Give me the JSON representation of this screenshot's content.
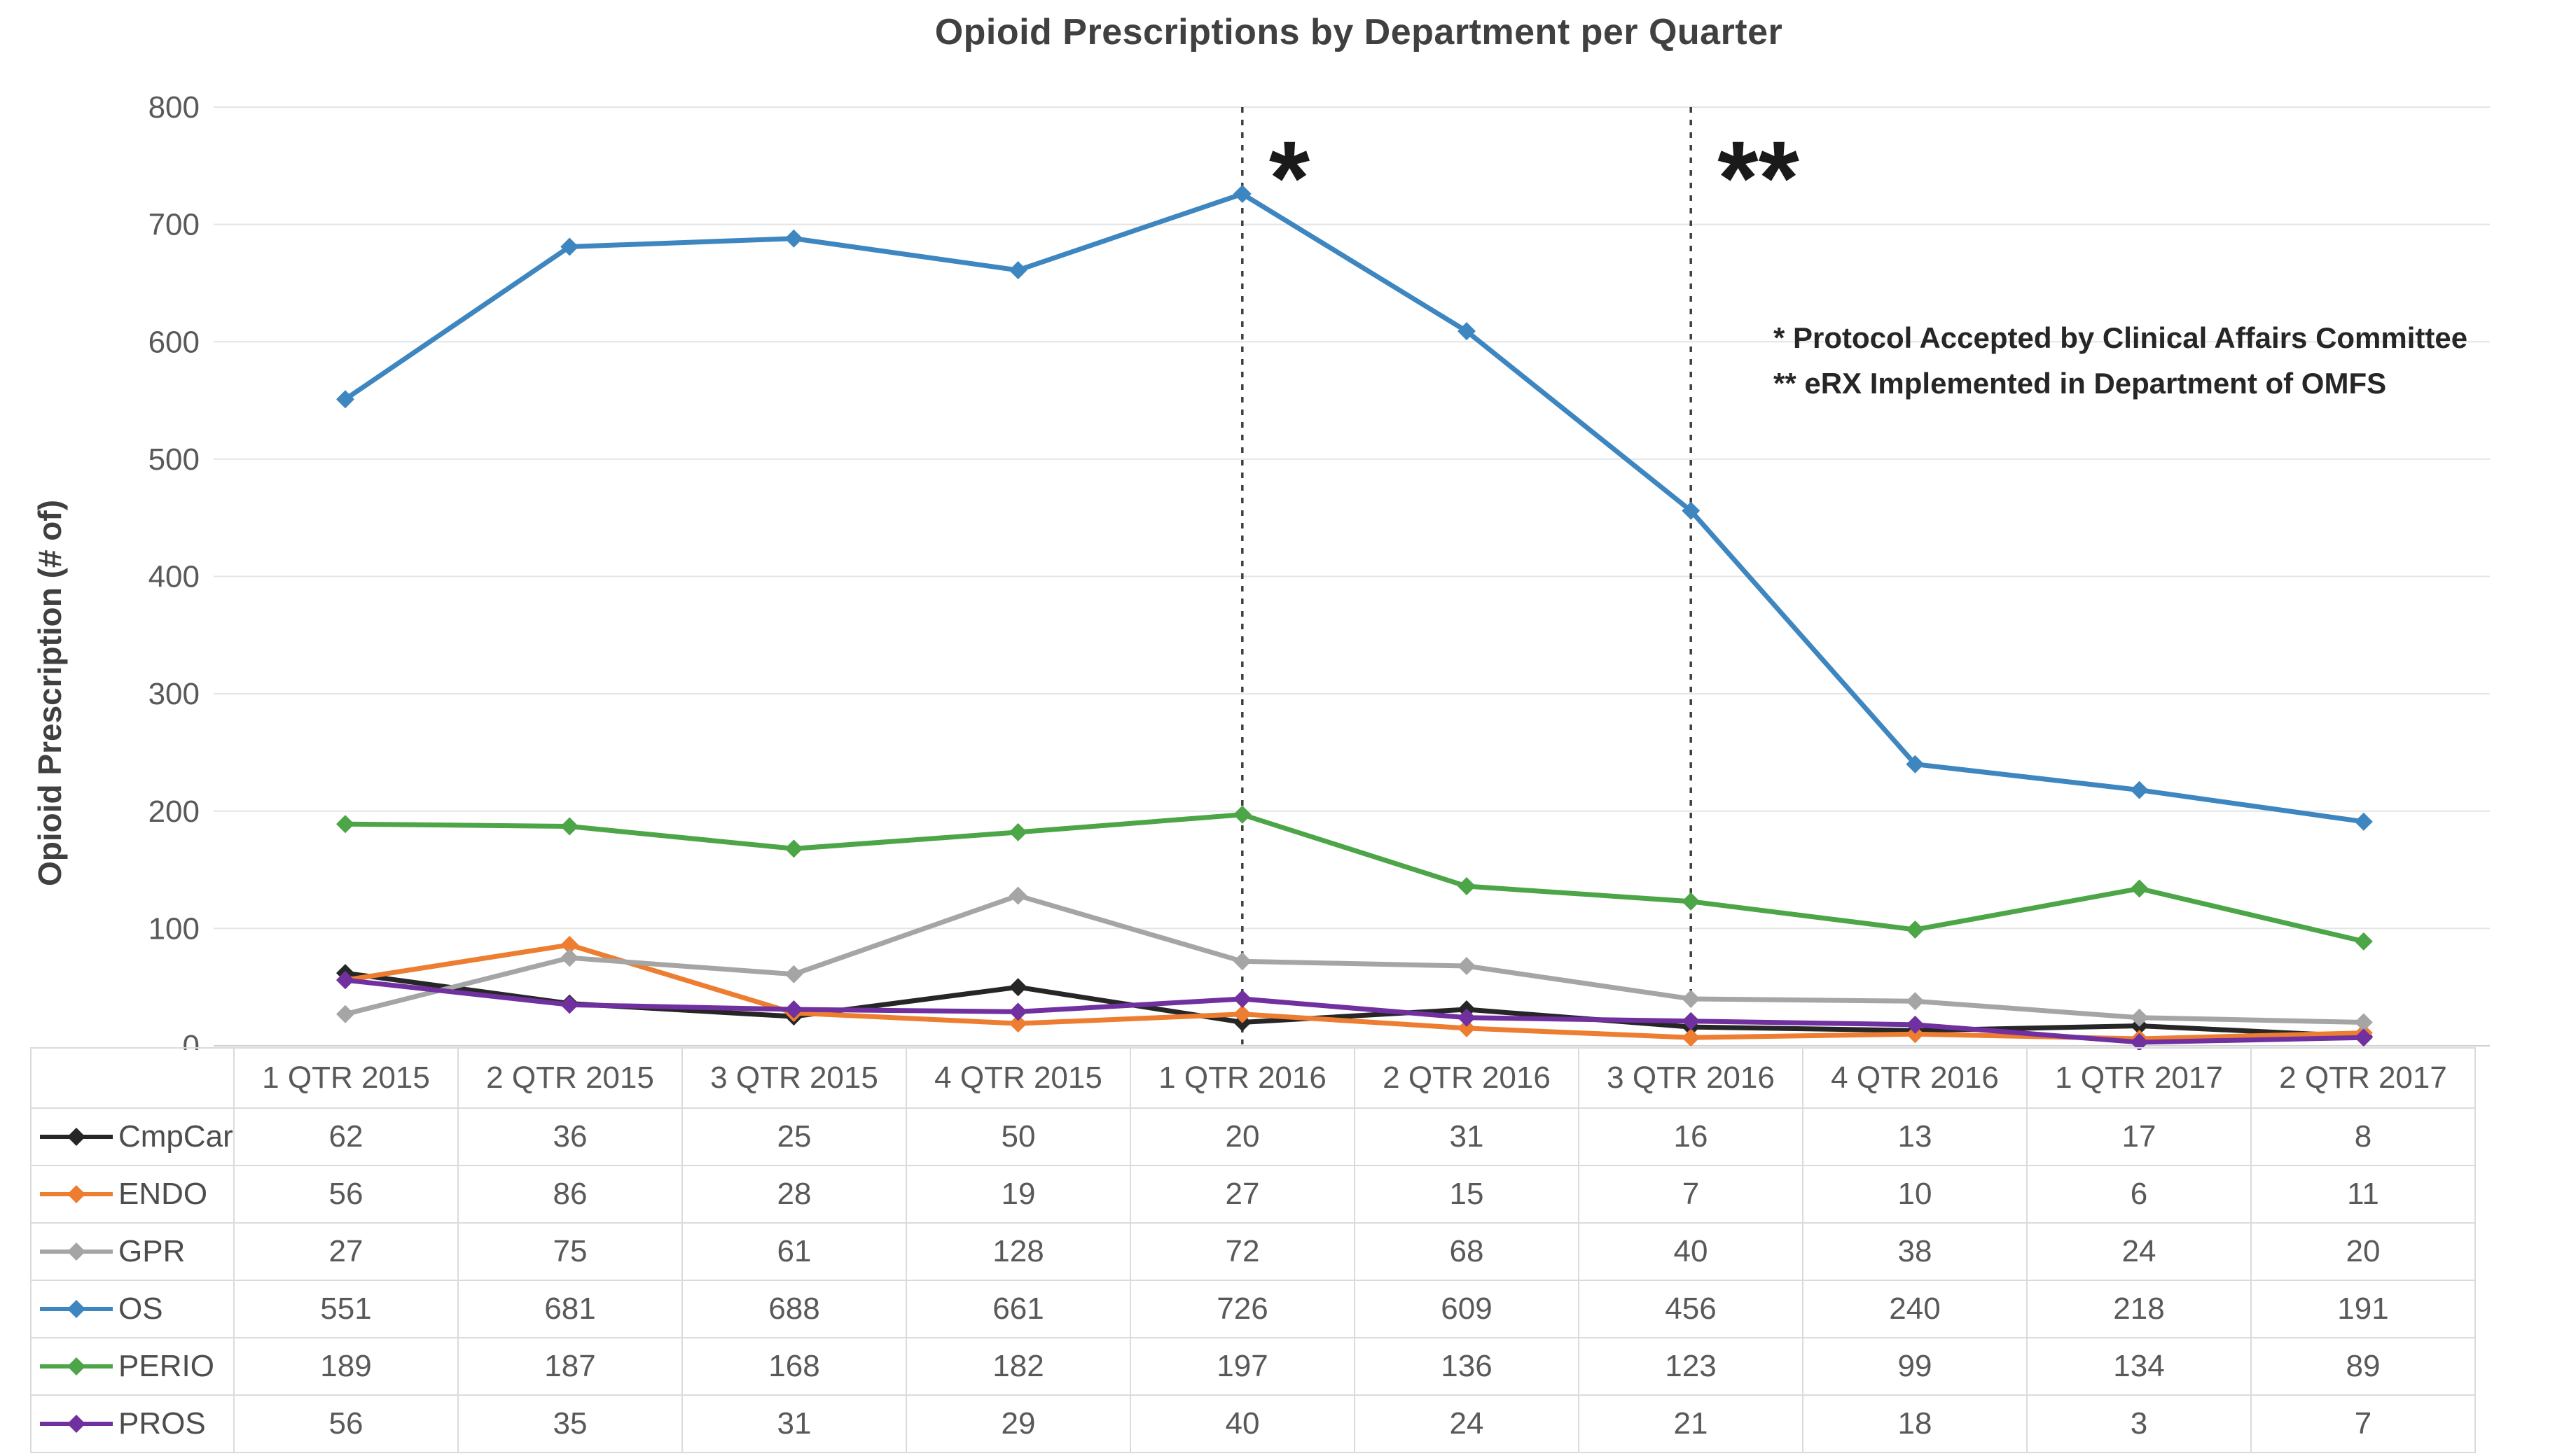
{
  "title": "Opioid Prescriptions by Department per Quarter",
  "y_axis": {
    "label": "Opioid Prescription (# of)",
    "ticks": [
      0,
      100,
      200,
      300,
      400,
      500,
      600,
      700,
      800
    ]
  },
  "annotations": {
    "line1": "* Protocol Accepted by Clinical Affairs Committee",
    "line2": "** eRX Implemented in Department of OMFS"
  },
  "colors": {
    "title_text": "#404040",
    "axis_text": "#595959",
    "gridline": "#E4E4E4",
    "zero_line": "#CFCFCF",
    "event_line": "#3F3F3F",
    "event_marker_text": "#1A1A1A",
    "table_border": "#DBDBDB"
  },
  "chart_data": {
    "type": "line",
    "title": "Opioid Prescriptions by Department per Quarter",
    "xlabel": "",
    "ylabel": "Opioid Prescription (# of)",
    "ylim": [
      0,
      800
    ],
    "ytick_step": 100,
    "grid": true,
    "legend_position": "table-left",
    "categories": [
      "1 QTR 2015",
      "2 QTR 2015",
      "3 QTR 2015",
      "4 QTR 2015",
      "1 QTR 2016",
      "2 QTR 2016",
      "3 QTR 2016",
      "4 QTR 2016",
      "1 QTR 2017",
      "2 QTR 2017"
    ],
    "series": [
      {
        "name": "CmpCar",
        "color": "#262626",
        "values": [
          62,
          36,
          25,
          50,
          20,
          31,
          16,
          13,
          17,
          8
        ]
      },
      {
        "name": "ENDO",
        "color": "#ED7D31",
        "values": [
          56,
          86,
          28,
          19,
          27,
          15,
          7,
          10,
          6,
          11
        ]
      },
      {
        "name": "GPR",
        "color": "#A5A5A5",
        "values": [
          27,
          75,
          61,
          128,
          72,
          68,
          40,
          38,
          24,
          20
        ]
      },
      {
        "name": "OS",
        "color": "#3E86C0",
        "values": [
          551,
          681,
          688,
          661,
          726,
          609,
          456,
          240,
          218,
          191
        ]
      },
      {
        "name": "PERIO",
        "color": "#4CA546",
        "values": [
          189,
          187,
          168,
          182,
          197,
          136,
          123,
          99,
          134,
          89
        ]
      },
      {
        "name": "PROS",
        "color": "#7030A0",
        "values": [
          56,
          35,
          31,
          29,
          40,
          24,
          21,
          18,
          3,
          7
        ]
      }
    ],
    "event_lines": [
      {
        "category_index": 4,
        "label": "*"
      },
      {
        "category_index": 6,
        "label": "**"
      }
    ]
  }
}
